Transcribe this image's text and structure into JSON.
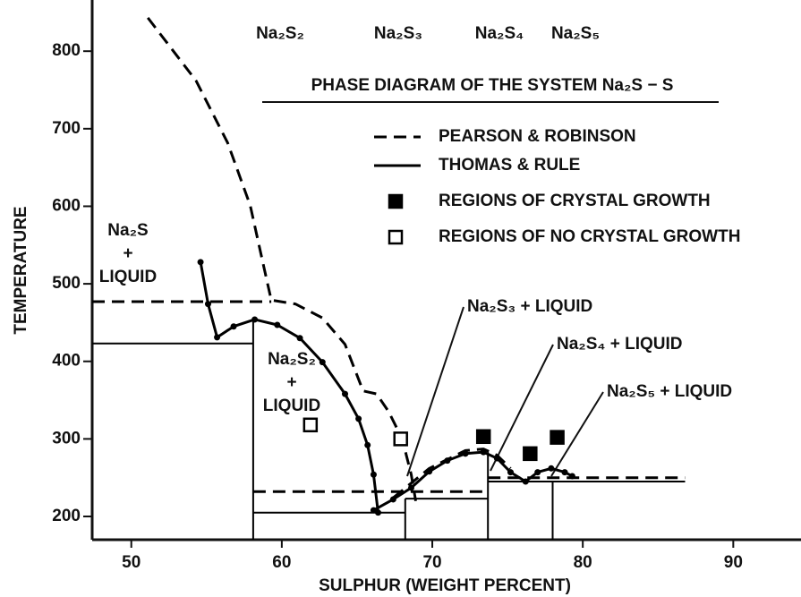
{
  "chart_data": {
    "type": "phase_diagram",
    "title": "PHASE DIAGRAM OF THE SYSTEM Na₂S − S",
    "x_label": "SULPHUR (WEIGHT PERCENT)",
    "y_label": "TEMPERATURE",
    "xlim": [
      47.4,
      94.5
    ],
    "ylim": [
      170,
      866
    ],
    "xticks": [
      50,
      60,
      70,
      80,
      90
    ],
    "yticks": [
      200,
      300,
      400,
      500,
      600,
      700,
      800
    ],
    "compounds": [
      "Na₂S₂",
      "Na₂S₃",
      "Na₂S₄",
      "Na₂S₅"
    ],
    "regions": [
      {
        "lines": [
          "Na₂S",
          "+",
          "LIQUID"
        ]
      },
      {
        "lines": [
          "Na₂S₂",
          "+",
          "LIQUID"
        ]
      }
    ],
    "callouts": [
      "Na₂S₃ + LIQUID",
      "Na₂S₄ + LIQUID",
      "Na₂S₅ + LIQUID"
    ],
    "series": [
      {
        "name": "PEARSON & ROBINSON",
        "style": "dashed",
        "color": "#000000",
        "x": [
          51.1,
          54.3,
          56.4,
          57.9,
          58.7,
          59.3,
          60.9,
          62.7,
          64.2,
          65.4,
          66.3,
          67.1,
          68.0,
          68.6,
          68.9,
          null,
          47.4,
          59.3,
          null,
          58.1,
          73.7,
          null,
          73.7,
          86.8,
          null,
          67.4,
          69.8,
          72.2,
          73.4,
          74.3,
          75.2
        ],
        "y": [
          843,
          762,
          682,
          601,
          531,
          479,
          474,
          456,
          422,
          362,
          358,
          335,
          300,
          254,
          220,
          null,
          477,
          477,
          null,
          232,
          232,
          null,
          250,
          250,
          null,
          224,
          262,
          285,
          287,
          279,
          262
        ]
      },
      {
        "name": "THOMAS & RULE",
        "style": "solid",
        "color": "#000000",
        "markers": true,
        "x": [
          54.6,
          55.1,
          55.7,
          56.8,
          58.2,
          59.7,
          61.2,
          62.7,
          64.2,
          65.1,
          65.7,
          66.1,
          66.4,
          null,
          66.1,
          67.4,
          68.6,
          69.8,
          71.0,
          72.2,
          73.4,
          74.3,
          75.2,
          76.2,
          77.0,
          77.9,
          78.8,
          79.3
        ],
        "y": [
          528,
          474,
          431,
          445,
          454,
          447,
          430,
          399,
          358,
          326,
          292,
          254,
          205,
          null,
          208,
          222,
          237,
          258,
          272,
          281,
          283,
          275,
          257,
          245,
          257,
          262,
          257,
          252
        ]
      },
      {
        "style": "thin",
        "color": "#000000",
        "x": [
          47.4,
          58.1,
          null,
          58.1,
          58.1,
          null,
          58.1,
          68.2,
          null,
          68.2,
          68.2,
          null,
          68.2,
          73.7,
          null,
          73.7,
          73.7,
          null,
          73.7,
          86.8,
          null,
          78.0,
          78.0
        ],
        "y": [
          423,
          423,
          null,
          170,
          454,
          null,
          205,
          205,
          null,
          170,
          223,
          null,
          223,
          223,
          null,
          170,
          283,
          null,
          245,
          245,
          null,
          170,
          245
        ]
      },
      {
        "name": "REGIONS OF CRYSTAL GROWTH",
        "style": "filled-square",
        "color": "#000000",
        "x": [
          73.4,
          76.5,
          78.3
        ],
        "y": [
          303,
          281,
          302
        ]
      },
      {
        "name": "REGIONS OF NO CRYSTAL GROWTH",
        "style": "open-square",
        "color": "#000000",
        "x": [
          61.9,
          67.9
        ],
        "y": [
          318,
          300
        ]
      }
    ]
  }
}
